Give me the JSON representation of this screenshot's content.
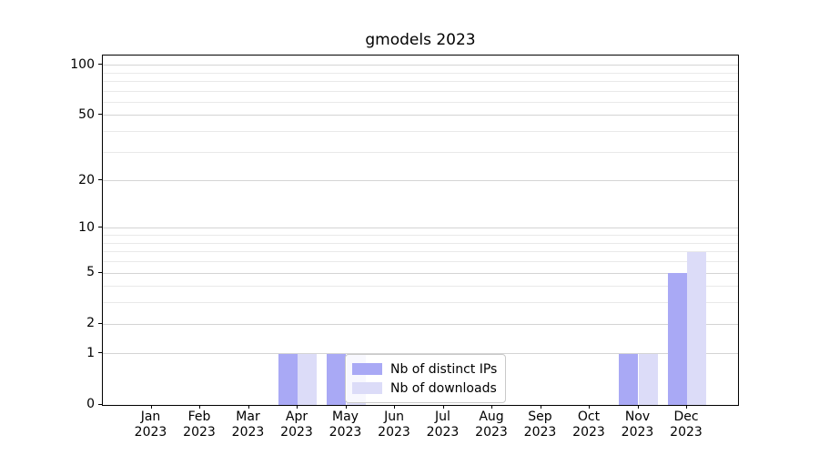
{
  "title": "gmodels 2023",
  "chart_data": {
    "type": "bar",
    "title": "gmodels 2023",
    "categories": [
      "Jan 2023",
      "Feb 2023",
      "Mar 2023",
      "Apr 2023",
      "May 2023",
      "Jun 2023",
      "Jul 2023",
      "Aug 2023",
      "Sep 2023",
      "Oct 2023",
      "Nov 2023",
      "Dec 2023"
    ],
    "series": [
      {
        "name": "Nb of distinct IPs",
        "color": "#a9a9f5",
        "values": [
          0,
          0,
          0,
          1,
          1,
          0,
          0,
          0,
          0,
          0,
          1,
          5
        ]
      },
      {
        "name": "Nb of downloads",
        "color": "#dcdcf8",
        "values": [
          0,
          0,
          0,
          1,
          1,
          0,
          0,
          0,
          0,
          0,
          1,
          7
        ]
      }
    ],
    "xlabel": "",
    "ylabel": "",
    "yscale": "log1p",
    "yticks": [
      0,
      1,
      2,
      5,
      10,
      20,
      50,
      100
    ],
    "minor_gridlines": [
      3,
      4,
      6,
      7,
      8,
      9,
      30,
      40,
      60,
      70,
      80,
      90
    ],
    "ylim": [
      0,
      113
    ],
    "grid": "horizontal major+minor",
    "legend_position": "lower center inside axes",
    "colors": {
      "distinct_ips": "#a9a9f5",
      "downloads": "#dcdcf8",
      "major_grid": "#d4d4d4",
      "minor_grid": "#e9e9e9",
      "spine": "#000000",
      "legend_border": "#c9c9c9"
    }
  }
}
